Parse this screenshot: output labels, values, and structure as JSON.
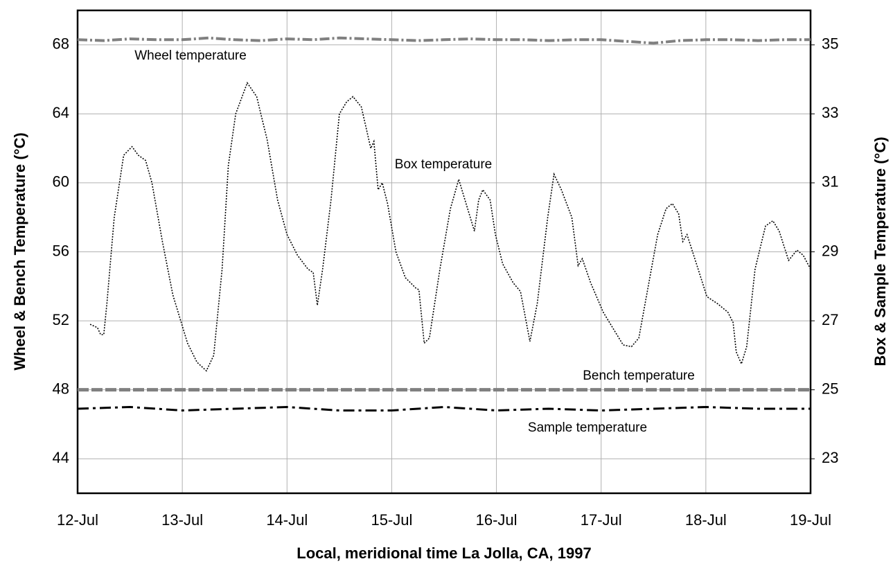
{
  "chart_data": {
    "type": "line",
    "xlabel": "Local, meridional time La Jolla, CA, 1997",
    "ylabel": "Wheel & Bench Temperature   (°C)",
    "y2label": "Box & Sample Temperature   (°C)",
    "xlim": [
      0,
      7
    ],
    "xticks": [
      {
        "value": 0,
        "label": "12-Jul"
      },
      {
        "value": 1,
        "label": "13-Jul"
      },
      {
        "value": 2,
        "label": "14-Jul"
      },
      {
        "value": 3,
        "label": "15-Jul"
      },
      {
        "value": 4,
        "label": "16-Jul"
      },
      {
        "value": 5,
        "label": "17-Jul"
      },
      {
        "value": 6,
        "label": "18-Jul"
      },
      {
        "value": 7,
        "label": "19-Jul"
      }
    ],
    "ylim": [
      42,
      70
    ],
    "yticks": [
      44,
      48,
      52,
      56,
      60,
      64,
      68
    ],
    "y2lim": [
      22,
      36
    ],
    "y2ticks": [
      23,
      25,
      27,
      29,
      31,
      33,
      35
    ],
    "grid": true,
    "annotations": [
      "Wheel temperature",
      "Box temperature",
      "Bench temperature",
      "Sample temperature"
    ],
    "series": [
      {
        "name": "Wheel temperature",
        "color": "#808080",
        "dash": "14 4 3 4",
        "width": 4,
        "x": [
          0,
          0.25,
          0.5,
          0.75,
          1,
          1.25,
          1.5,
          1.75,
          2,
          2.25,
          2.5,
          2.75,
          3,
          3.25,
          3.5,
          3.75,
          4,
          4.25,
          4.5,
          4.75,
          5,
          5.25,
          5.5,
          5.75,
          6,
          6.25,
          6.5,
          6.75,
          7
        ],
        "values": [
          68.3,
          68.25,
          68.35,
          68.3,
          68.3,
          68.4,
          68.3,
          68.25,
          68.35,
          68.3,
          68.4,
          68.35,
          68.3,
          68.25,
          68.3,
          68.35,
          68.3,
          68.3,
          68.25,
          68.3,
          68.3,
          68.2,
          68.1,
          68.25,
          68.3,
          68.3,
          68.25,
          68.3,
          68.3
        ]
      },
      {
        "name": "Bench temperature",
        "color": "#808080",
        "dash": "16 4",
        "width": 5,
        "x": [
          0,
          7
        ],
        "values": [
          48,
          48
        ]
      },
      {
        "name": "Sample temperature",
        "color": "#000000",
        "dash": "16 6 4 6",
        "width": 3,
        "axis": "y2",
        "x": [
          0,
          0.5,
          1,
          1.5,
          2,
          2.5,
          3,
          3.5,
          4,
          4.5,
          5,
          5.5,
          6,
          6.5,
          7
        ],
        "values": [
          24.45,
          24.5,
          24.4,
          24.45,
          24.5,
          24.4,
          24.4,
          24.5,
          24.4,
          24.45,
          24.4,
          24.45,
          24.5,
          24.45,
          24.45
        ]
      },
      {
        "name": "Box temperature",
        "color": "#000000",
        "dash": "2 2",
        "width": 1.6,
        "axis": "y2",
        "x": [
          0.12,
          0.19,
          0.22,
          0.25,
          0.28,
          0.35,
          0.44,
          0.52,
          0.58,
          0.65,
          0.71,
          0.81,
          0.91,
          1.05,
          1.14,
          1.23,
          1.3,
          1.38,
          1.44,
          1.51,
          1.62,
          1.71,
          1.81,
          1.91,
          2.0,
          2.1,
          2.2,
          2.25,
          2.29,
          2.34,
          2.42,
          2.5,
          2.57,
          2.63,
          2.71,
          2.8,
          2.83,
          2.87,
          2.91,
          2.96,
          3.04,
          3.13,
          3.23,
          3.26,
          3.31,
          3.36,
          3.46,
          3.56,
          3.64,
          3.7,
          3.79,
          3.83,
          3.87,
          3.94,
          3.99,
          4.06,
          4.16,
          4.23,
          4.32,
          4.39,
          4.49,
          4.55,
          4.62,
          4.72,
          4.78,
          4.82,
          4.9,
          5.02,
          5.11,
          5.21,
          5.29,
          5.36,
          5.45,
          5.54,
          5.62,
          5.68,
          5.74,
          5.78,
          5.82,
          5.91,
          6.01,
          6.11,
          6.21,
          6.26,
          6.29,
          6.34,
          6.39,
          6.47,
          6.57,
          6.64,
          6.7,
          6.79,
          6.87,
          6.93,
          7.0
        ],
        "values": [
          26.9,
          26.8,
          26.6,
          26.6,
          27.5,
          30.0,
          31.8,
          32.05,
          31.8,
          31.65,
          31.0,
          29.3,
          27.75,
          26.35,
          25.8,
          25.55,
          26.0,
          28.5,
          31.5,
          33.0,
          33.9,
          33.5,
          32.25,
          30.5,
          29.5,
          28.9,
          28.5,
          28.4,
          27.45,
          28.5,
          30.5,
          33.0,
          33.35,
          33.5,
          33.2,
          32.0,
          32.2,
          30.8,
          31.0,
          30.4,
          29.0,
          28.25,
          27.95,
          27.9,
          26.35,
          26.5,
          28.5,
          30.25,
          31.1,
          30.5,
          29.6,
          30.5,
          30.8,
          30.5,
          29.5,
          28.65,
          28.1,
          27.85,
          26.4,
          27.5,
          30.0,
          31.25,
          30.8,
          30.0,
          28.6,
          28.8,
          28.1,
          27.25,
          26.8,
          26.3,
          26.25,
          26.5,
          28.0,
          29.5,
          30.25,
          30.4,
          30.1,
          29.3,
          29.5,
          28.65,
          27.7,
          27.5,
          27.25,
          26.95,
          26.1,
          25.75,
          26.25,
          28.5,
          29.75,
          29.9,
          29.6,
          28.75,
          29.05,
          28.9,
          28.5
        ]
      }
    ]
  }
}
